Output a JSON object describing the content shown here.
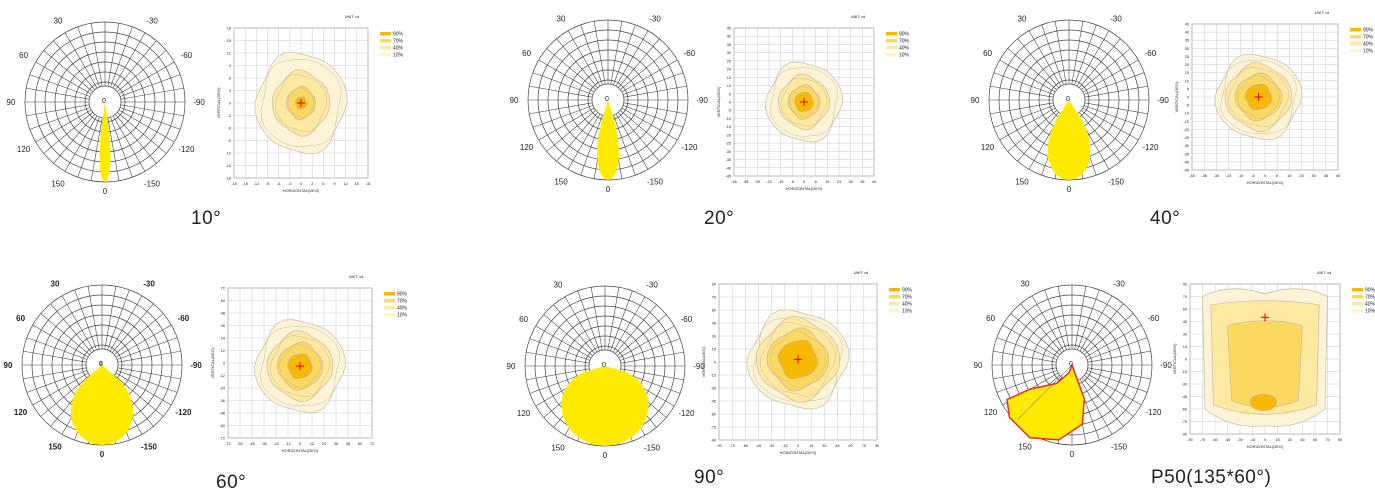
{
  "colors": {
    "grid": "#c8c8c8",
    "polar_line": "#444444",
    "beam": "#ffea00",
    "beam_outline": "#e03030",
    "iso90": "#f6b800",
    "iso70": "#fbd860",
    "iso40": "#fde9a0",
    "iso10": "#fdf4d8",
    "iso_line": "#c8b8a8",
    "center_mark": "#e00000"
  },
  "legend_labels": [
    "90%",
    "70%",
    "40%",
    "10%"
  ],
  "unit_label": "UNIT: cd",
  "polar_labels": [
    "-150",
    "150",
    "-120",
    "120",
    "-90",
    "90",
    "-60",
    "60",
    "-30",
    "30",
    "0",
    "0"
  ],
  "chart_data": [
    {
      "type": "polar+isolux",
      "caption": "10°",
      "beam_angle": 10,
      "grid_ticks": [
        "-18",
        "-15",
        "-12",
        "-9",
        "-6",
        "-3",
        "0",
        "3",
        "6",
        "9",
        "12",
        "15",
        "18"
      ],
      "xlabel": "HORIZONTAL(DEG)",
      "ylabel": "VERTICAL(DEG)",
      "ylim": [
        -18,
        18
      ],
      "xlim": [
        -18,
        18
      ],
      "iso_radii_deg": [
        1.5,
        3.8,
        7.5,
        12
      ],
      "center": [
        0,
        0
      ]
    },
    {
      "type": "polar+isolux",
      "caption": "20°",
      "beam_angle": 20,
      "grid_ticks": [
        "-45",
        "-40",
        "-35",
        "-30",
        "-25",
        "-20",
        "-15",
        "-10",
        "-5",
        "0",
        "5",
        "10",
        "15",
        "20",
        "25",
        "30",
        "35",
        "40",
        "45"
      ],
      "grid_ticks_x": [
        "-45",
        "-38",
        "-30",
        "-23",
        "-15",
        "-8",
        "0",
        "8",
        "15",
        "23",
        "30",
        "38",
        "45"
      ],
      "xlabel": "HORIZONTAL(DEG)",
      "ylabel": "VERTICAL(DEG)",
      "ylim": [
        -45,
        45
      ],
      "xlim": [
        -45,
        45
      ],
      "iso_radii_deg": [
        6,
        10,
        16,
        24
      ],
      "center": [
        0,
        0
      ]
    },
    {
      "type": "polar+isolux",
      "caption": "40°",
      "beam_angle": 40,
      "grid_ticks": [
        "-45",
        "-40",
        "-35",
        "-30",
        "-25",
        "-20",
        "-15",
        "-10",
        "-5",
        "0",
        "5",
        "10",
        "15",
        "20",
        "25",
        "30",
        "35",
        "40",
        "45"
      ],
      "grid_ticks_x": [
        "-45",
        "-38",
        "-30",
        "-23",
        "-15",
        "-8",
        "0",
        "8",
        "15",
        "23",
        "30",
        "38",
        "45"
      ],
      "xlabel": "HORIZONTAL(DEG)",
      "ylabel": "VERTICAL(DEG)",
      "ylim": [
        -45,
        45
      ],
      "xlim": [
        -45,
        45
      ],
      "iso_radii_deg": [
        8,
        14,
        20,
        26
      ],
      "center": [
        -4,
        0
      ]
    },
    {
      "type": "polar+isolux",
      "caption": "60°",
      "beam_angle": 60,
      "grid_ticks": [
        "-72",
        "-60",
        "-48",
        "-36",
        "-24",
        "-12",
        "0",
        "12",
        "24",
        "36",
        "48",
        "60",
        "72"
      ],
      "xlabel": "HORIZONTAL(DEG)",
      "ylabel": "VERTICAL(DEG)",
      "ylim": [
        -72,
        72
      ],
      "xlim": [
        -72,
        72
      ],
      "iso_radii_deg": [
        12,
        22,
        32,
        44
      ],
      "center": [
        0,
        -3
      ]
    },
    {
      "type": "polar+isolux",
      "caption": "90°",
      "beam_angle": 90,
      "grid_ticks": [
        "-90",
        "-75",
        "-60",
        "-45",
        "-30",
        "-15",
        "0",
        "15",
        "30",
        "45",
        "60",
        "75",
        "90"
      ],
      "xlabel": "HORIZONTAL(DEG)",
      "ylabel": "VERTICAL(DEG)",
      "ylim": [
        -90,
        90
      ],
      "xlim": [
        -90,
        90
      ],
      "iso_radii_deg": [
        22,
        34,
        46,
        56
      ],
      "center": [
        0,
        3
      ]
    },
    {
      "type": "polar+isolux",
      "caption": "P50(135*60°)",
      "beam_angle": 60,
      "asymmetric": true,
      "grid_ticks": [
        "-90",
        "-75",
        "-60",
        "-45",
        "-30",
        "-15",
        "0",
        "15",
        "30",
        "45",
        "60",
        "75",
        "90"
      ],
      "xlabel": "HORIZONTAL(DEG)",
      "ylabel": "VERTICAL(DEG)",
      "ylim": [
        -90,
        90
      ],
      "xlim": [
        -90,
        90
      ],
      "center": [
        0,
        50
      ]
    }
  ]
}
